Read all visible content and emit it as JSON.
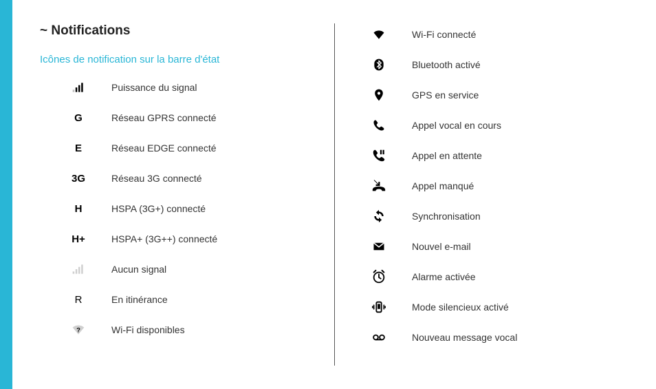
{
  "colors": {
    "accent": "#29b6d6",
    "text": "#333",
    "title": "#222",
    "icon": "#000",
    "iconFaded": "#bfbfbf"
  },
  "page": {
    "title": "~ Notifications",
    "sectionTitle": "Icônes de notification sur la barre d'état"
  },
  "leftItems": [
    {
      "icon": "signal-icon",
      "glyph": "",
      "label": "Puissance du signal"
    },
    {
      "icon": "text-icon",
      "glyph": "G",
      "label": "Réseau GPRS connecté"
    },
    {
      "icon": "text-icon",
      "glyph": "E",
      "label": "Réseau EDGE connecté"
    },
    {
      "icon": "text-icon",
      "glyph": "3G",
      "label": "Réseau 3G connecté"
    },
    {
      "icon": "text-icon",
      "glyph": "H",
      "label": "HSPA (3G+) connecté"
    },
    {
      "icon": "text-icon",
      "glyph": "H+",
      "label": "HSPA+ (3G++) connecté"
    },
    {
      "icon": "no-signal-icon",
      "glyph": "",
      "label": "Aucun signal"
    },
    {
      "icon": "text-icon-light",
      "glyph": "R",
      "label": "En itinérance"
    },
    {
      "icon": "wifi-question-icon",
      "glyph": "",
      "label": "Wi-Fi disponibles"
    }
  ],
  "rightItems": [
    {
      "icon": "wifi-icon",
      "label": "Wi-Fi connecté"
    },
    {
      "icon": "bluetooth-icon",
      "label": "Bluetooth activé"
    },
    {
      "icon": "gps-icon",
      "label": "GPS en service"
    },
    {
      "icon": "phone-icon",
      "label": "Appel vocal en cours"
    },
    {
      "icon": "phone-hold-icon",
      "label": "Appel en attente"
    },
    {
      "icon": "missed-call-icon",
      "label": "Appel manqué"
    },
    {
      "icon": "sync-icon",
      "label": "Synchronisation"
    },
    {
      "icon": "email-icon",
      "label": "Nouvel e-mail"
    },
    {
      "icon": "alarm-icon",
      "label": "Alarme activée"
    },
    {
      "icon": "silent-icon",
      "label": "Mode silencieux activé"
    },
    {
      "icon": "voicemail-icon",
      "label": "Nouveau message vocal"
    }
  ]
}
